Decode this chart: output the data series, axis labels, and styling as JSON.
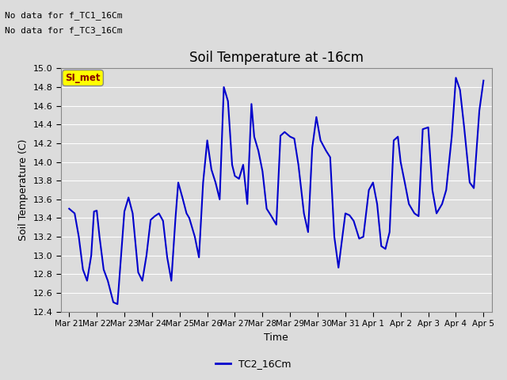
{
  "title": "Soil Temperature at -16cm",
  "ylabel": "Soil Temperature (C)",
  "xlabel": "Time",
  "line_color": "#0000CC",
  "line_width": 1.5,
  "ylim": [
    12.4,
    15.0
  ],
  "background_color": "#DCDCDC",
  "grid_color": "#FFFFFF",
  "legend_label": "TC2_16Cm",
  "no_data_text1": "No data for f_TC1_16Cm",
  "no_data_text2": "No data for f_TC3_16Cm",
  "si_met_label": "SI_met",
  "xtick_labels": [
    "Mar 21",
    "Mar 22",
    "Mar 23",
    "Mar 24",
    "Mar 25",
    "Mar 26",
    "Mar 27",
    "Mar 28",
    "Mar 29",
    "Mar 30",
    "Mar 31",
    "Apr 1",
    "Apr 2",
    "Apr 3",
    "Apr 4",
    "Apr 5"
  ],
  "ytick_values": [
    12.4,
    12.6,
    12.8,
    13.0,
    13.2,
    13.4,
    13.6,
    13.8,
    14.0,
    14.2,
    14.4,
    14.6,
    14.8,
    15.0
  ],
  "xtick_positions": [
    0,
    1,
    2,
    3,
    4,
    5,
    6,
    7,
    8,
    9,
    10,
    11,
    12,
    13,
    14,
    15
  ],
  "y_data_points": [
    [
      0.0,
      13.5
    ],
    [
      0.2,
      13.45
    ],
    [
      0.35,
      13.2
    ],
    [
      0.5,
      12.85
    ],
    [
      0.65,
      12.73
    ],
    [
      0.8,
      13.0
    ],
    [
      0.9,
      13.47
    ],
    [
      1.0,
      13.48
    ],
    [
      1.1,
      13.2
    ],
    [
      1.25,
      12.85
    ],
    [
      1.4,
      12.73
    ],
    [
      1.6,
      12.5
    ],
    [
      1.75,
      12.48
    ],
    [
      2.0,
      13.47
    ],
    [
      2.15,
      13.62
    ],
    [
      2.3,
      13.45
    ],
    [
      2.5,
      12.82
    ],
    [
      2.65,
      12.73
    ],
    [
      2.8,
      13.0
    ],
    [
      2.95,
      13.38
    ],
    [
      3.1,
      13.42
    ],
    [
      3.25,
      13.45
    ],
    [
      3.4,
      13.37
    ],
    [
      3.55,
      12.98
    ],
    [
      3.7,
      12.73
    ],
    [
      3.85,
      13.4
    ],
    [
      3.95,
      13.78
    ],
    [
      4.1,
      13.62
    ],
    [
      4.25,
      13.45
    ],
    [
      4.35,
      13.4
    ],
    [
      4.55,
      13.2
    ],
    [
      4.7,
      12.98
    ],
    [
      4.85,
      13.78
    ],
    [
      5.0,
      14.23
    ],
    [
      5.15,
      13.92
    ],
    [
      5.3,
      13.78
    ],
    [
      5.45,
      13.6
    ],
    [
      5.6,
      14.8
    ],
    [
      5.75,
      14.65
    ],
    [
      5.9,
      13.97
    ],
    [
      6.0,
      13.85
    ],
    [
      6.15,
      13.82
    ],
    [
      6.3,
      13.97
    ],
    [
      6.45,
      13.55
    ],
    [
      6.6,
      14.62
    ],
    [
      6.7,
      14.27
    ],
    [
      6.85,
      14.12
    ],
    [
      7.0,
      13.9
    ],
    [
      7.15,
      13.5
    ],
    [
      7.3,
      13.43
    ],
    [
      7.5,
      13.33
    ],
    [
      7.65,
      14.28
    ],
    [
      7.8,
      14.32
    ],
    [
      8.0,
      14.27
    ],
    [
      8.15,
      14.25
    ],
    [
      8.3,
      13.97
    ],
    [
      8.5,
      13.45
    ],
    [
      8.65,
      13.25
    ],
    [
      8.8,
      14.15
    ],
    [
      8.95,
      14.48
    ],
    [
      9.1,
      14.23
    ],
    [
      9.3,
      14.12
    ],
    [
      9.45,
      14.05
    ],
    [
      9.6,
      13.2
    ],
    [
      9.75,
      12.87
    ],
    [
      9.9,
      13.22
    ],
    [
      10.0,
      13.45
    ],
    [
      10.15,
      13.43
    ],
    [
      10.3,
      13.37
    ],
    [
      10.5,
      13.18
    ],
    [
      10.65,
      13.2
    ],
    [
      10.85,
      13.7
    ],
    [
      11.0,
      13.78
    ],
    [
      11.15,
      13.55
    ],
    [
      11.3,
      13.1
    ],
    [
      11.45,
      13.07
    ],
    [
      11.6,
      13.25
    ],
    [
      11.75,
      14.23
    ],
    [
      11.9,
      14.27
    ],
    [
      12.0,
      14.0
    ],
    [
      12.15,
      13.78
    ],
    [
      12.3,
      13.55
    ],
    [
      12.5,
      13.45
    ],
    [
      12.65,
      13.42
    ],
    [
      12.8,
      14.35
    ],
    [
      13.0,
      14.37
    ],
    [
      13.15,
      13.7
    ],
    [
      13.3,
      13.45
    ],
    [
      13.5,
      13.55
    ],
    [
      13.65,
      13.7
    ],
    [
      13.85,
      14.27
    ],
    [
      14.0,
      14.9
    ],
    [
      14.15,
      14.77
    ],
    [
      14.3,
      14.37
    ],
    [
      14.5,
      13.78
    ],
    [
      14.65,
      13.72
    ],
    [
      14.85,
      14.55
    ],
    [
      15.0,
      14.87
    ]
  ]
}
